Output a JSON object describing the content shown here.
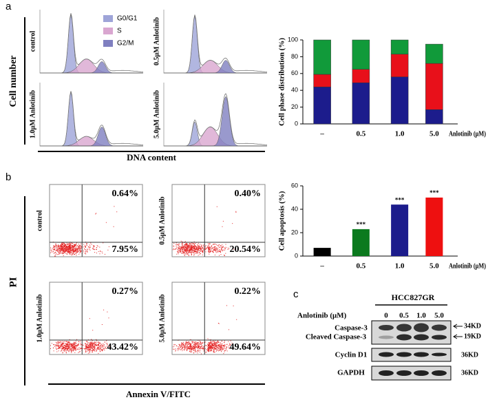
{
  "panel_labels": [
    "a",
    "b",
    "c"
  ],
  "cell_cycle": {
    "y_label": "Cell number",
    "x_label": "DNA content",
    "legend": [
      "G0/G1",
      "S",
      "G2/M"
    ],
    "panels": [
      "control",
      "0.5μM Anlotinib",
      "1.0μM Anlotinib",
      "5.0μM Anlotinib"
    ]
  },
  "apoptosis_plots": {
    "y_label": "PI",
    "x_label": "Annexin V/FITC",
    "panels": [
      {
        "label": "control",
        "upper": "0.64%",
        "lower": "7.95%"
      },
      {
        "label": "0.5μM Anlotinib",
        "upper": "0.40%",
        "lower": "20.54%"
      },
      {
        "label": "1.0μM Anlotinib",
        "upper": "0.27%",
        "lower": "43.42%"
      },
      {
        "label": "5.0μM Anlotinib",
        "upper": "0.22%",
        "lower": "49.64%"
      }
    ]
  },
  "chart_data": [
    {
      "type": "bar",
      "stacked": true,
      "y_label": "Cell phase distribution (%)",
      "x_label": "Anlotinib (μM)",
      "categories": [
        "–",
        "0.5",
        "1.0",
        "5.0"
      ],
      "ylim": [
        0,
        100
      ],
      "yticks": [
        0,
        20,
        40,
        60,
        80,
        100
      ],
      "series": [
        {
          "color": "#1c1c8c",
          "values": [
            44,
            49,
            56,
            17
          ]
        },
        {
          "color": "#e8101a",
          "values": [
            15,
            16,
            27,
            55
          ]
        },
        {
          "color": "#119a3a",
          "values": [
            41,
            35,
            17,
            23
          ]
        }
      ]
    },
    {
      "type": "bar",
      "y_label": "Cell apoptosis (%)",
      "x_label": "Anlotinib (μM)",
      "categories": [
        "–",
        "0.5",
        "1.0",
        "5.0"
      ],
      "values": [
        7,
        23,
        44,
        50
      ],
      "colors": [
        "#000000",
        "#0b7a1e",
        "#1c1c8c",
        "#ee1010"
      ],
      "annotations": [
        null,
        "***",
        "***",
        "***"
      ],
      "ylim": [
        0,
        60
      ],
      "yticks": [
        0,
        20,
        40,
        60
      ]
    }
  ],
  "western_blot": {
    "group": "HCC827GR",
    "treatment": "Anlotinib (μM)",
    "lanes": [
      "0",
      "0.5",
      "1.0",
      "5.0"
    ],
    "proteins": [
      "Caspase-3",
      "Cleaved Caspase-3",
      "Cyclin D1",
      "GAPDH"
    ],
    "sizes": [
      "34KD",
      "19KD",
      "36KD",
      "36KD"
    ]
  }
}
